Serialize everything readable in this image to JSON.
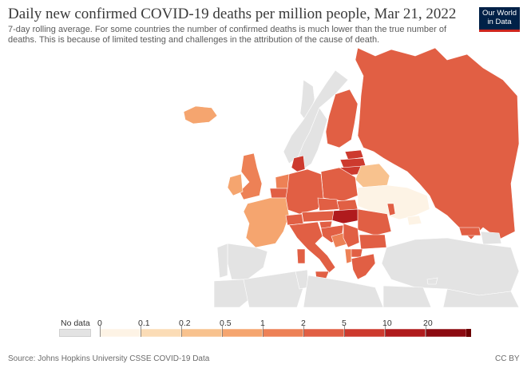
{
  "header": {
    "title": "Daily new confirmed COVID-19 deaths per million people, Mar 21, 2022",
    "subtitle": "7-day rolling average. For some countries the number of confirmed deaths is much lower than the true number of deaths. This is because of limited testing and challenges in the attribution of the cause of death."
  },
  "logo": {
    "line1": "Our World",
    "line2": "in Data"
  },
  "legend": {
    "no_data_label": "No data",
    "tick_labels": [
      "0",
      "0.1",
      "0.2",
      "0.5",
      "1",
      "2",
      "5",
      "10",
      "20"
    ],
    "colors": [
      "#fdf3e5",
      "#fbdcb6",
      "#f8c28e",
      "#f5a56f",
      "#ed8156",
      "#e15f44",
      "#cd3a2e",
      "#b01b1d",
      "#8c0a11",
      "#6b0000"
    ],
    "no_data_color": "#e3e3e3"
  },
  "footer": {
    "source": "Source: Johns Hopkins University CSSE COVID-19 Data",
    "license": "CC BY"
  }
}
